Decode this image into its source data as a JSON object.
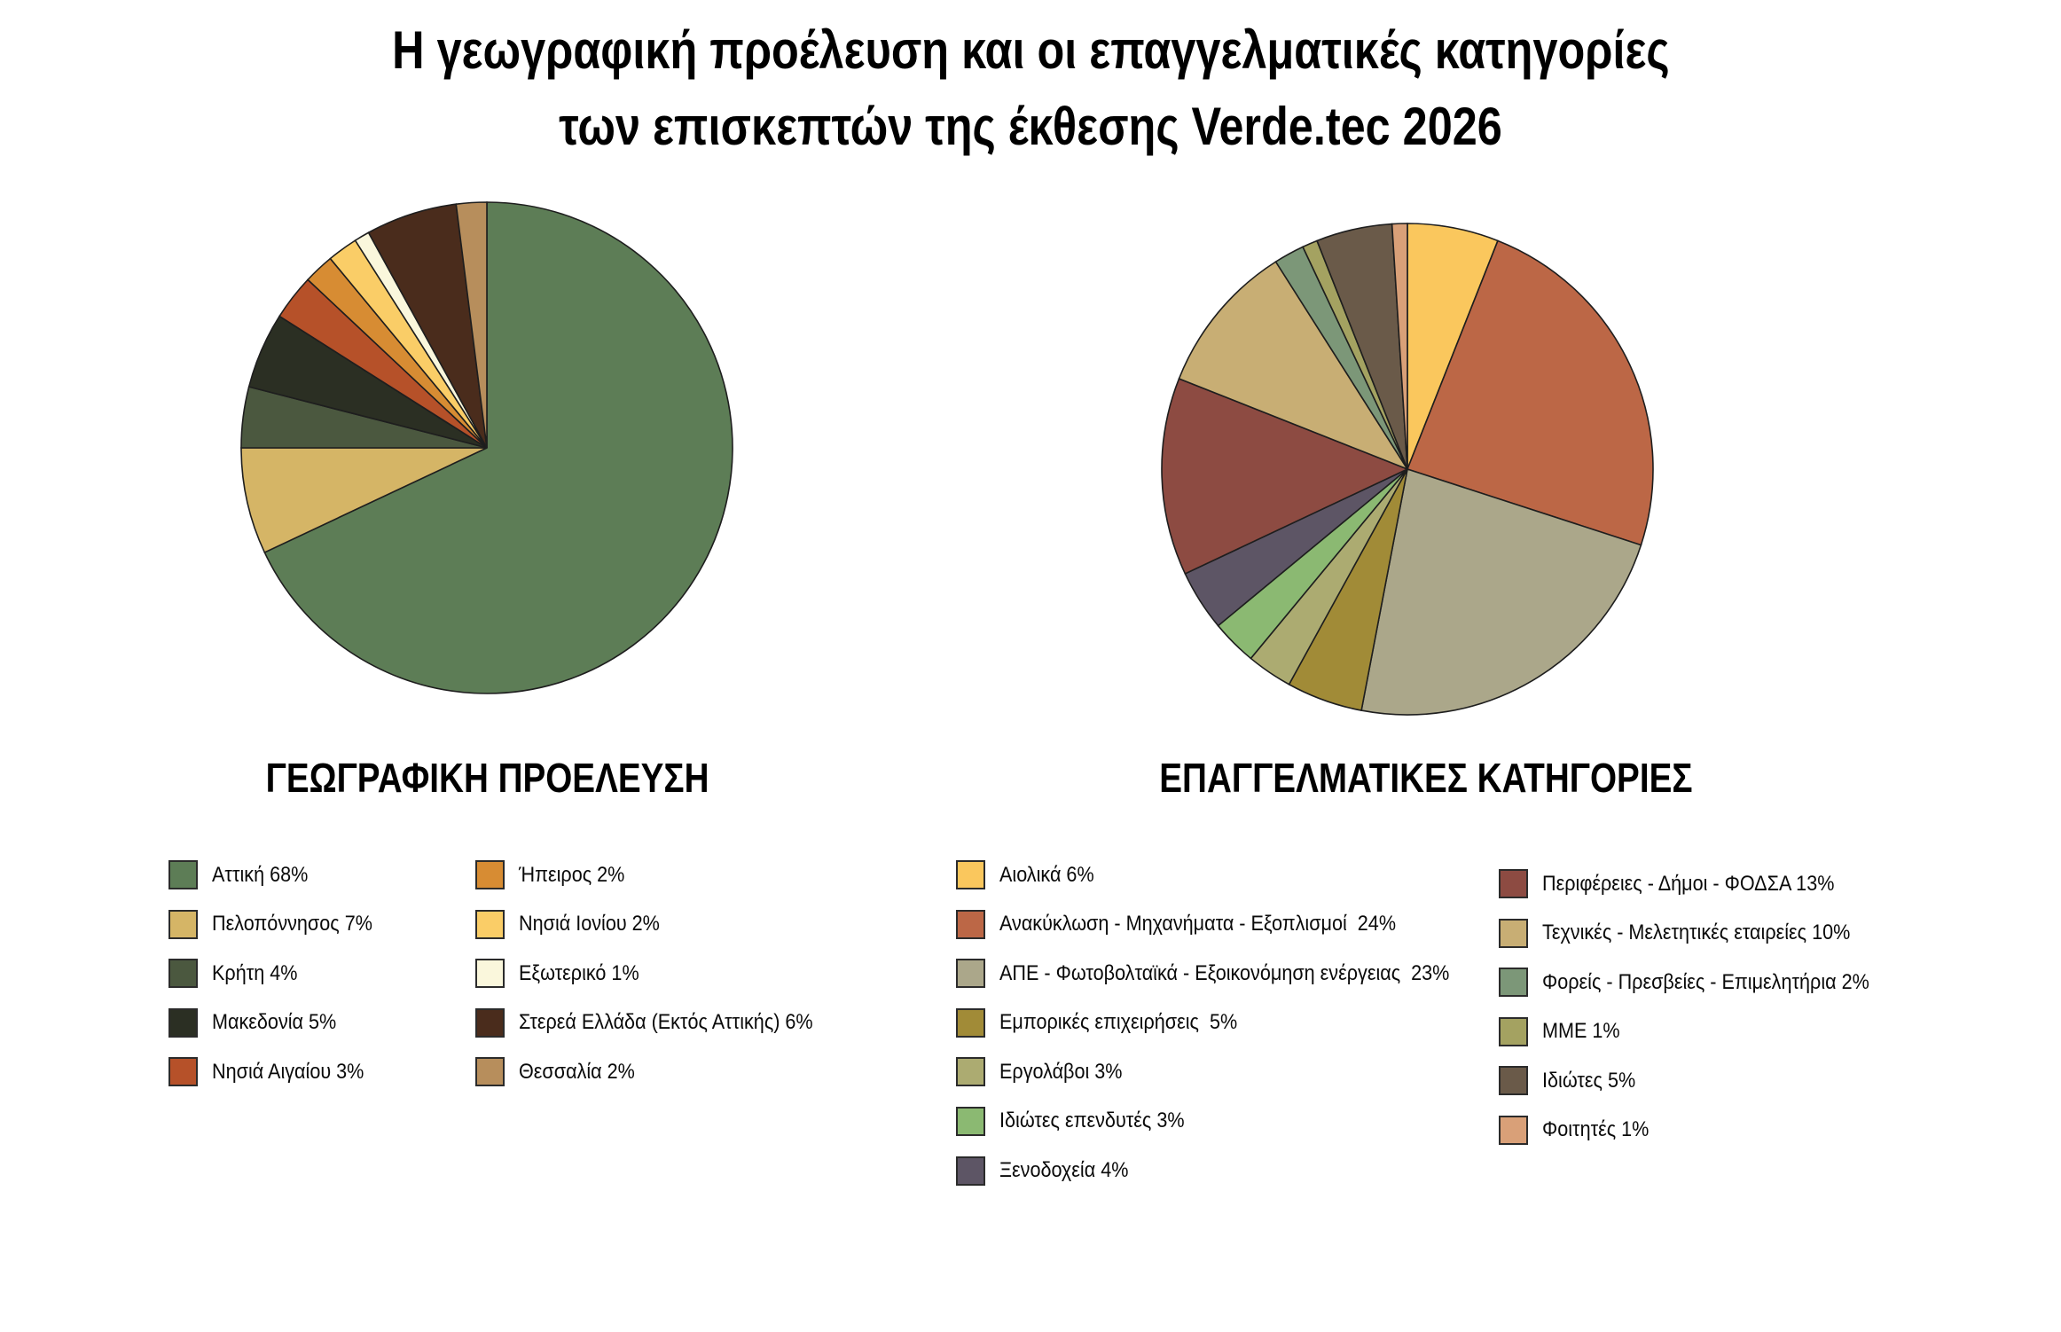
{
  "title": {
    "line1": "Η γεωγραφική προέλευση και οι επαγγελματικές κατηγορίες",
    "line2": "των επισκεπτών της έκθεσης Verde.tec 2026"
  },
  "style": {
    "background": "#ffffff",
    "text_color": "#000000",
    "slice_stroke": "#1e1e1e",
    "swatch_border": "#2b2b2b"
  },
  "chart_data": [
    {
      "type": "pie",
      "heading": "ΓΕΩΓΡΑΦΙΚΗ ΠΡΟΕΛΕΥΣΗ",
      "unit": "%",
      "start_angle_deg": 0,
      "direction": "clockwise",
      "legend_position": "below-two-columns",
      "labels": [
        "Αττική",
        "Πελοπόννησος",
        "Κρήτη",
        "Μακεδονία",
        "Νησιά Αιγαίου",
        "Ήπειρος",
        "Νησιά Ιονίου",
        "Εξωτερικό",
        "Στερεά Ελλάδα (Εκτός Αττικής)",
        "Θεσσαλία"
      ],
      "values": [
        68,
        7,
        4,
        5,
        3,
        2,
        2,
        1,
        6,
        2
      ],
      "colors": [
        "#5D7D56",
        "#D5B566",
        "#4B583F",
        "#2B2F23",
        "#B65129",
        "#D78C33",
        "#FACD67",
        "#FAF7DC",
        "#4A2C1C",
        "#B78E5C"
      ],
      "legend_texts": [
        "Αττική 68%",
        "Πελοπόννησος 7%",
        "Κρήτη 4%",
        "Μακεδονία 5%",
        "Νησιά Αιγαίου 3%",
        "Ήπειρος 2%",
        "Νησιά Ιονίου 2%",
        "Εξωτερικό 1%",
        "Στερεά Ελλάδα (Εκτός Αττικής) 6%",
        "Θεσσαλία 2%"
      ],
      "legend_columns": [
        [
          0,
          1,
          2,
          3,
          4
        ],
        [
          5,
          6,
          7,
          8,
          9
        ]
      ]
    },
    {
      "type": "pie",
      "heading": "ΕΠΑΓΓΕΛΜΑΤΙΚΕΣ ΚΑΤΗΓΟΡΙΕΣ",
      "unit": "%",
      "start_angle_deg": 0,
      "direction": "clockwise",
      "legend_position": "below-two-columns",
      "labels": [
        "Αιολικά",
        "Ανακύκλωση - Μηχανήματα - Εξοπλισμοί",
        "ΑΠΕ - Φωτοβολταϊκά - Εξοικονόμηση ενέργειας",
        "Εμπορικές επιχειρήσεις",
        "Εργολάβοι",
        "Ιδιώτες επενδυτές",
        "Ξενοδοχεία",
        "Περιφέρειες - Δήμοι - ΦΟΔΣΑ",
        "Τεχνικές - Μελετητικές εταιρείες",
        "Φορείς - Πρεσβείες - Επιμελητήρια",
        "ΜΜΕ",
        "Ιδιώτες",
        "Φοιτητές"
      ],
      "values": [
        6,
        24,
        23,
        5,
        3,
        3,
        4,
        13,
        10,
        2,
        1,
        5,
        1
      ],
      "colors": [
        "#FAC75D",
        "#BC6746",
        "#ABA78A",
        "#A18B37",
        "#ACAB71",
        "#8BB972",
        "#5D5565",
        "#8D4B42",
        "#C8AE74",
        "#7C9778",
        "#A4A261",
        "#6A5A49",
        "#D9A078"
      ],
      "legend_texts": [
        "Αιολικά 6%",
        "Ανακύκλωση - Μηχανήματα - Εξοπλισμοί  24%",
        "ΑΠΕ - Φωτοβολταϊκά - Εξοικονόμηση ενέργειας  23%",
        "Εμπορικές επιχειρήσεις  5%",
        "Εργολάβοι 3%",
        "Ιδιώτες επενδυτές 3%",
        "Ξενοδοχεία 4%",
        "Περιφέρειες - Δήμοι - ΦΟΔΣΑ 13%",
        "Τεχνικές - Μελετητικές εταιρείες 10%",
        "Φορείς - Πρεσβείες - Επιμελητήρια 2%",
        "ΜΜΕ 1%",
        "Ιδιώτες 5%",
        "Φοιτητές 1%"
      ],
      "legend_columns": [
        [
          0,
          1,
          2,
          3,
          4,
          5,
          6
        ],
        [
          7,
          8,
          9,
          10,
          11,
          12
        ]
      ]
    }
  ]
}
